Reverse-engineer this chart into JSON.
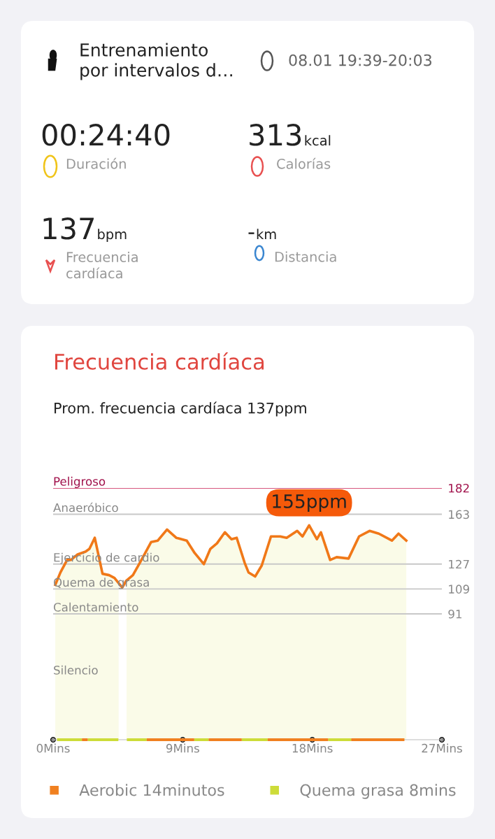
{
  "chart_data": [
    {
      "type": "other",
      "title": "Entrenamiento\npor intervalos d…",
      "annotations": [
        "08.01 19:39-20:03",
        "00:24:40",
        "Duración",
        "313",
        "kcal",
        "Calorías",
        "137",
        "bpm",
        "Frecuencia\ncardíaca",
        "-",
        "km",
        "Distancia"
      ]
    },
    {
      "type": "area",
      "title": "Frecuencia cardíaca",
      "subtitle": "Prom. frecuencia cardíaca 137ppm",
      "series": [
        {
          "type": "area",
          "color": "#f07818",
          "x": [
            0.15,
            0.51,
            0.97,
            1.24,
            1.7,
            2.25,
            2.52,
            2.89,
            3.16,
            3.43,
            3.89,
            4.26,
            4.8,
            5.08,
            5.54,
            6.08,
            6.81,
            7.27,
            7.91,
            8.55,
            9.28,
            9.83,
            10.47,
            10.92,
            11.38,
            11.93,
            12.39,
            12.75,
            13.3,
            13.57,
            14.03,
            14.49,
            15.13,
            15.77,
            16.22,
            16.95,
            17.32,
            17.78,
            18.32,
            18.6,
            19.24,
            19.69,
            20.52,
            21.25,
            21.98,
            22.62,
            23.53,
            23.99,
            24.53
          ],
          "values": [
            112,
            121,
            130,
            130,
            134,
            136,
            138,
            146,
            133,
            120,
            119,
            117,
            110,
            115,
            119,
            129,
            143,
            144,
            152,
            146,
            144,
            135,
            127,
            138,
            142,
            150,
            145,
            146,
            128,
            121,
            118,
            126,
            147,
            147,
            146,
            151,
            147,
            155,
            145,
            150,
            130,
            132,
            131,
            147,
            151,
            149,
            144,
            149,
            144
          ]
        },
        {
          "type": "line",
          "name": "Aerobic 14minutos",
          "color": "#f08020",
          "x": [
            2.0,
            2.4,
            2.45,
            6.5,
            9.8,
            9.85,
            10.8,
            13.1,
            13.15,
            14.9,
            19.1,
            19.15,
            20.7,
            24.4
          ],
          "values": [
            0,
            0,
            null,
            0,
            0,
            null,
            0,
            0,
            null,
            0,
            0,
            null,
            0,
            0
          ]
        },
        {
          "type": "line",
          "name": "Quema grasa 8mins",
          "color": "#cddc39",
          "x": [
            0.27,
            2.0,
            2.2,
            2.4,
            4.53,
            4.6,
            5.12,
            6.5,
            6.55,
            9.8,
            10.8,
            10.85,
            13.1,
            14.9,
            14.95,
            19.1,
            20.7
          ],
          "values": [
            0,
            0,
            null,
            0,
            0,
            null,
            0,
            0,
            null,
            0,
            0,
            null,
            0,
            0,
            null,
            0,
            0
          ]
        }
      ],
      "xlim": [
        0,
        27
      ],
      "xticks": [
        {
          "value": 0,
          "label": "0Mins"
        },
        {
          "value": 9,
          "label": "9Mins"
        },
        {
          "value": 18,
          "label": "18Mins"
        },
        {
          "value": 27,
          "label": "27Mins"
        }
      ],
      "ylim": [
        0,
        182
      ],
      "yticks": [
        91,
        109,
        127,
        163,
        182
      ],
      "ref_lines": [
        {
          "axis": "y",
          "value": 182,
          "color": "#d6577f"
        },
        {
          "axis": "y",
          "value": 163,
          "color": "#c8c8c8"
        },
        {
          "axis": "y",
          "value": 127,
          "color": "#c8c8c8"
        },
        {
          "axis": "y",
          "value": 109,
          "color": "#c8c8c8"
        },
        {
          "axis": "y",
          "value": 91,
          "color": "#c8c8c8"
        }
      ],
      "bands": [
        {
          "axis": "x",
          "from": 4.55,
          "to": 5.1,
          "color": "#ffffff"
        }
      ],
      "annotations": [
        {
          "text": "Peligroso",
          "y": 182
        },
        {
          "text": "Anaeróbico",
          "y": 163
        },
        {
          "text": "Ejercicio de cardio",
          "y": 127
        },
        {
          "text": "Quema de grasa",
          "y": 109
        },
        {
          "text": "Calentamiento",
          "y": 91
        },
        "Silencio",
        {
          "text": "155ppm",
          "x": 17.78,
          "y": 155
        }
      ],
      "grid": false,
      "legend": "bottom",
      "marker": "none",
      "line_style": "solid",
      "tick_labels": "xy"
    }
  ]
}
